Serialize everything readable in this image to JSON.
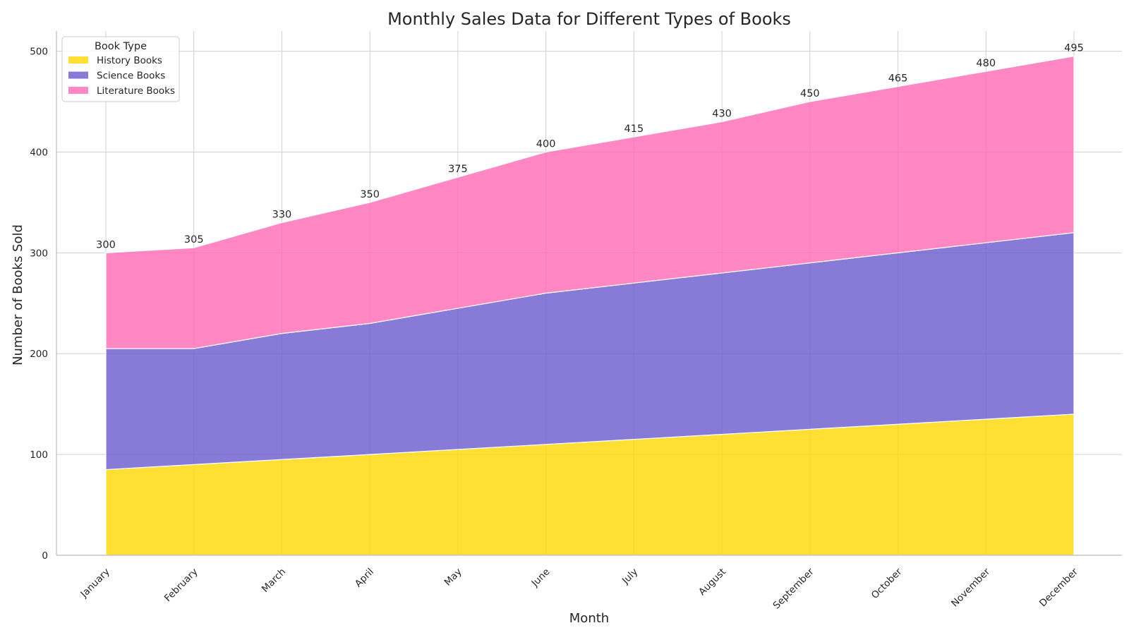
{
  "chart_data": {
    "type": "area",
    "stacked": true,
    "title": "Monthly Sales Data for Different Types of Books",
    "xlabel": "Month",
    "ylabel": "Number of Books Sold",
    "categories": [
      "January",
      "February",
      "March",
      "April",
      "May",
      "June",
      "July",
      "August",
      "September",
      "October",
      "November",
      "December"
    ],
    "series": [
      {
        "name": "History Books",
        "color": "#FFD700",
        "values": [
          85,
          90,
          95,
          100,
          105,
          110,
          115,
          120,
          125,
          130,
          135,
          140
        ]
      },
      {
        "name": "Science Books",
        "color": "#6A5ACD",
        "values": [
          120,
          115,
          125,
          130,
          140,
          150,
          155,
          160,
          165,
          170,
          175,
          180
        ]
      },
      {
        "name": "Literature Books",
        "color": "#FF69B4",
        "values": [
          95,
          100,
          110,
          120,
          130,
          140,
          145,
          150,
          160,
          165,
          170,
          175
        ]
      }
    ],
    "totals": [
      300,
      305,
      330,
      350,
      375,
      400,
      415,
      430,
      450,
      465,
      480,
      495
    ],
    "ylim": [
      0,
      520
    ],
    "yticks": [
      0,
      100,
      200,
      300,
      400,
      500
    ],
    "grid": true,
    "legend": {
      "title": "Book Type",
      "position": "top-left"
    }
  }
}
